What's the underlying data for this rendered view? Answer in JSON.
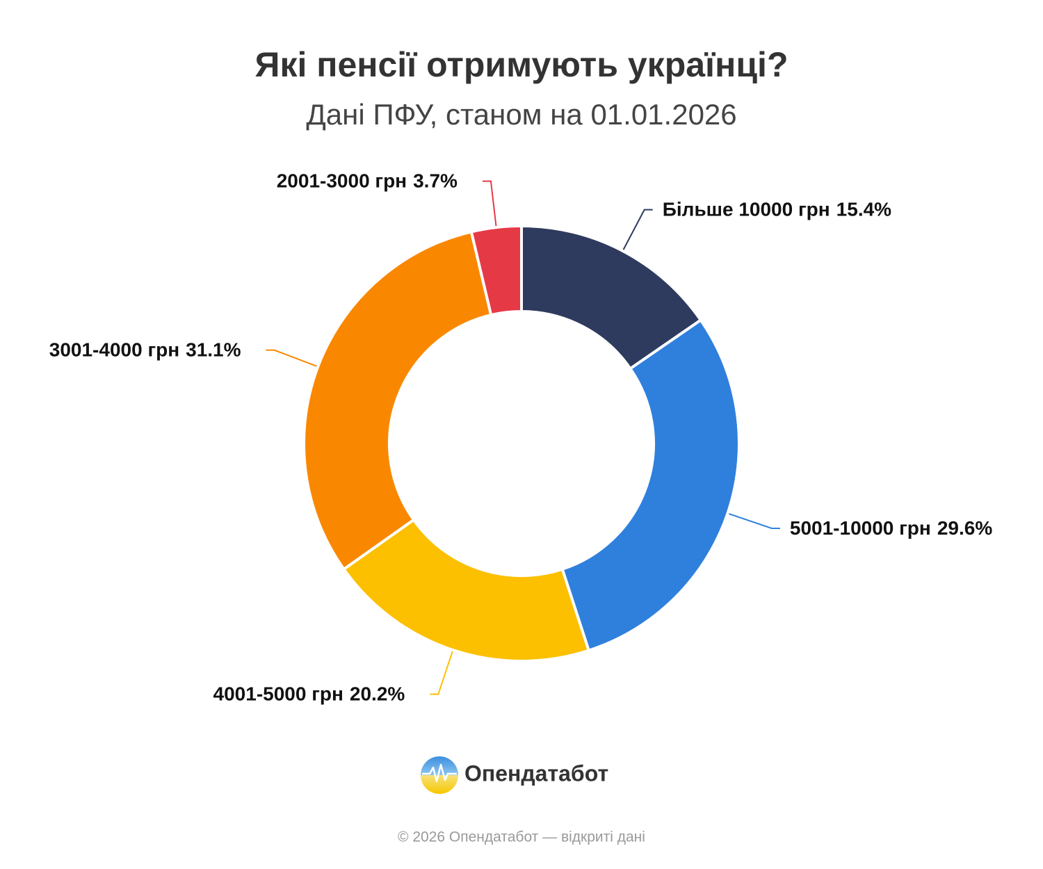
{
  "chart_data": {
    "type": "donut",
    "title": "Які пенсії отримують українці?",
    "subtitle": "Дані ПФУ, станом на 01.01.2026",
    "categories": [
      "Більше 10000 грн",
      "5001-10000 грн",
      "4001-5000 грн",
      "3001-4000 грн",
      "2001-3000 грн"
    ],
    "values": [
      15.4,
      29.6,
      20.2,
      31.1,
      3.7
    ],
    "value_labels": [
      "15.4%",
      "29.6%",
      "20.2%",
      "31.1%",
      "3.7%"
    ],
    "colors": [
      "#2e3b5e",
      "#2f80dd",
      "#fcc000",
      "#f98800",
      "#e63946"
    ]
  },
  "brand": "Опендатабот",
  "footer": "© 2026 Опендатабот — відкриті дані"
}
